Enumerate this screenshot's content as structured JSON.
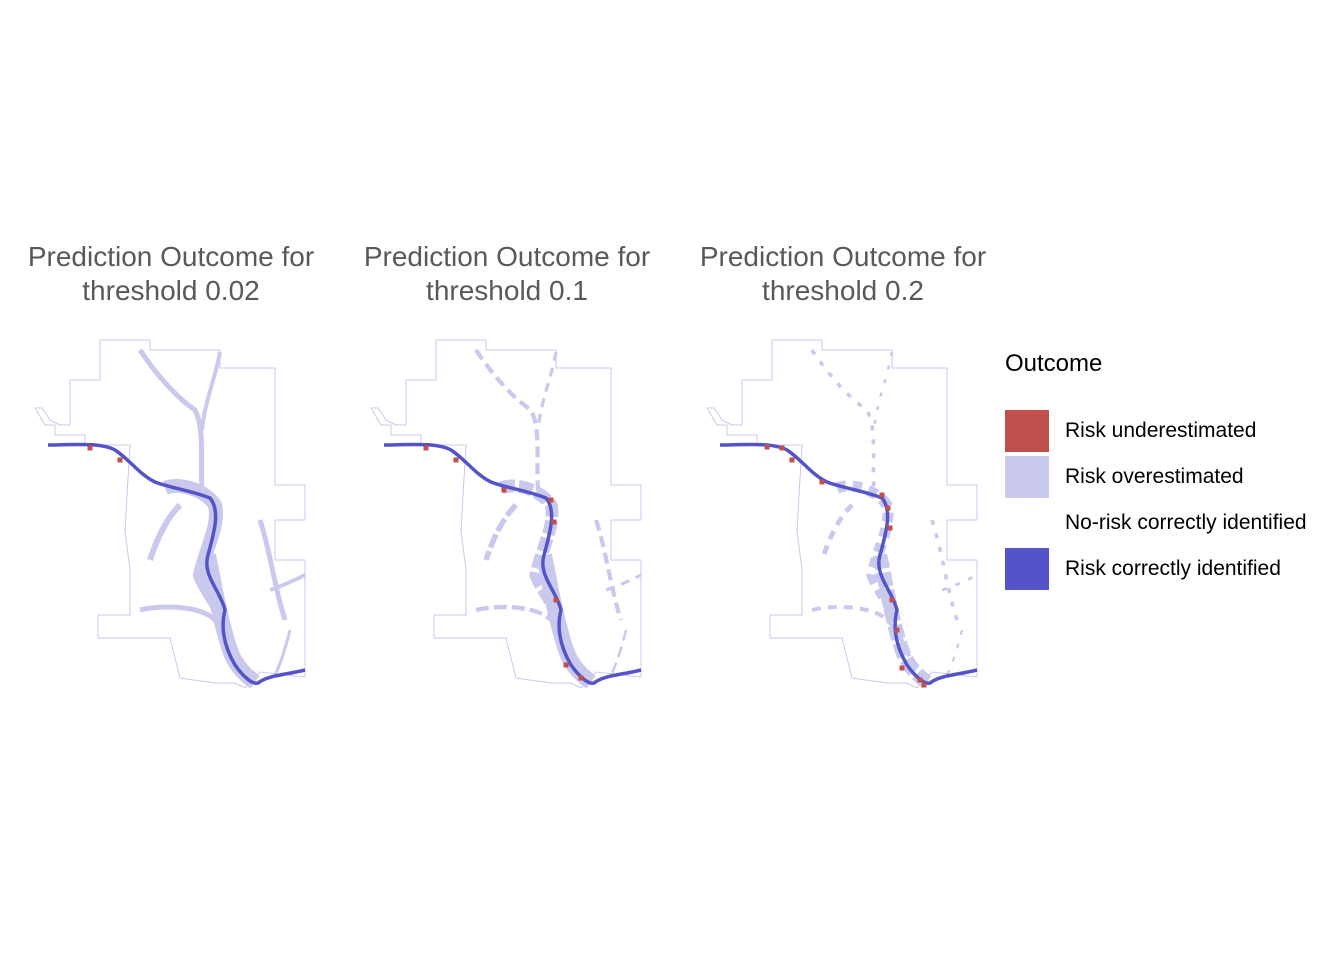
{
  "panels": [
    {
      "title_line1": "Prediction Outcome for",
      "title_line2": "threshold 0.02",
      "threshold": 0.02
    },
    {
      "title_line1": "Prediction Outcome for",
      "title_line2": "threshold 0.1",
      "threshold": 0.1
    },
    {
      "title_line1": "Prediction Outcome for",
      "title_line2": "threshold 0.2",
      "threshold": 0.2
    }
  ],
  "legend": {
    "title": "Outcome",
    "items": [
      {
        "label": "Risk underestimated",
        "color": "#c0504d"
      },
      {
        "label": "Risk overestimated",
        "color": "#c9c9ee"
      },
      {
        "label": "No-risk correctly identified",
        "color": "#ffffff"
      },
      {
        "label": "Risk correctly identified",
        "color": "#5454c8"
      }
    ]
  },
  "colors": {
    "boundary": "#c9c9ee",
    "title_text": "#595959"
  }
}
